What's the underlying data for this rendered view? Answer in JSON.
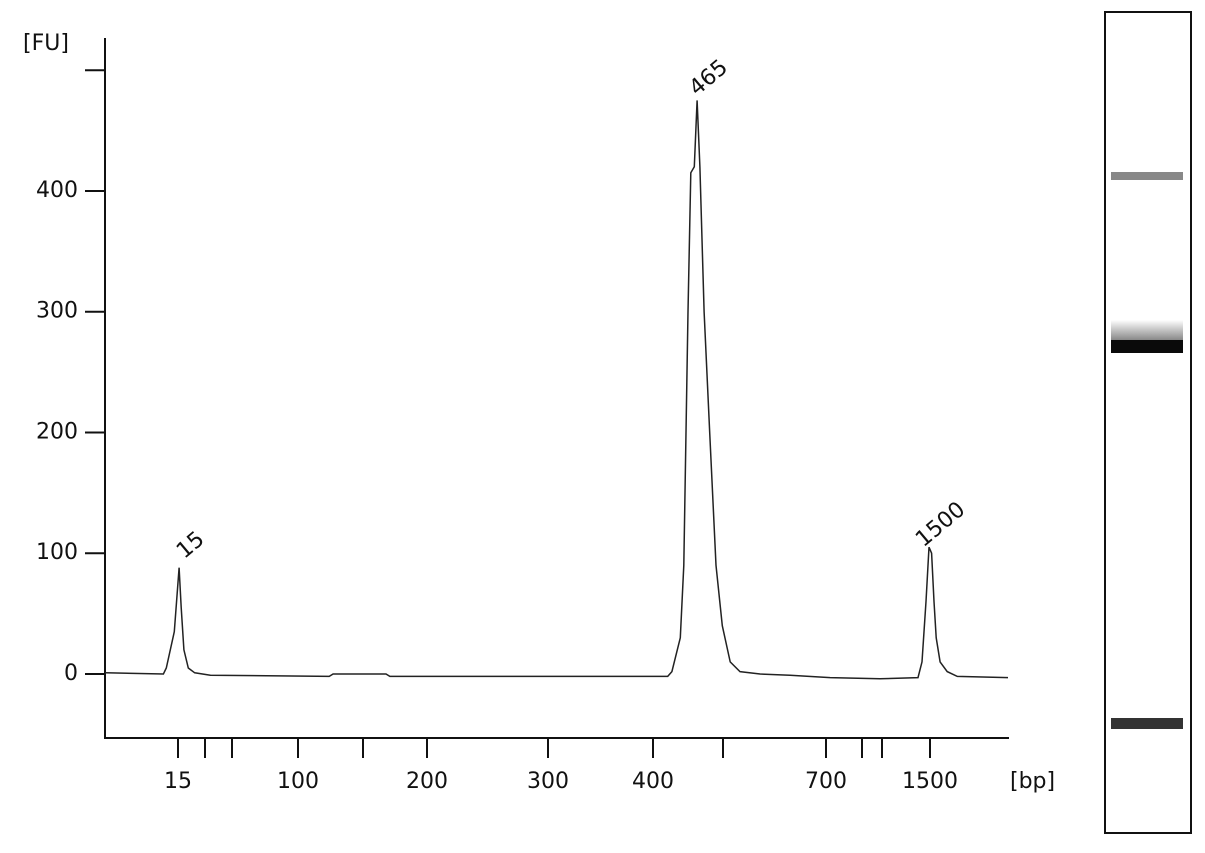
{
  "chart_data": {
    "type": "line",
    "y_label": "[FU]",
    "x_label": "[bp]",
    "ylim": [
      -53,
      525
    ],
    "yticks": [
      0,
      100,
      200,
      300,
      400,
      {
        "value": 500,
        "label": null
      }
    ],
    "xlim": [
      5,
      2500
    ],
    "xticks": [
      15,
      {
        "value": 20,
        "label": null
      },
      {
        "value": 25,
        "label": null
      },
      100,
      {
        "value": 150,
        "label": null
      },
      200,
      300,
      400,
      {
        "value": 500,
        "label": null
      },
      700,
      {
        "value": 850,
        "label": null
      },
      {
        "value": 1000,
        "label": null
      },
      1500
    ],
    "color": "#222222",
    "x": [
      5,
      13,
      13.4,
      14.5,
      15.2,
      15.6,
      16.1,
      16.9,
      18.1,
      21,
      124,
      127,
      168,
      171,
      421,
      427,
      439,
      444,
      450,
      454,
      459,
      463,
      467,
      473,
      481,
      490,
      499,
      514,
      533,
      572,
      630,
      717,
      985,
      1375,
      1417,
      1458,
      1490,
      1521,
      1551,
      1580,
      1630,
      1720,
      1850,
      2500
    ],
    "values": [
      1,
      0,
      5,
      35,
      88,
      55,
      20,
      5,
      1,
      -1,
      -2,
      0,
      0,
      -2,
      -2,
      2,
      30,
      90,
      300,
      415,
      420,
      475,
      420,
      300,
      200,
      90,
      40,
      10,
      2,
      0,
      -1,
      -3,
      -4,
      -3,
      10,
      60,
      105,
      100,
      60,
      30,
      10,
      2,
      -2,
      -3
    ],
    "annotations": [
      {
        "text": "15",
        "x": 15.2,
        "y": 88
      },
      {
        "text": "465",
        "x": 463,
        "y": 475
      },
      {
        "text": "1500",
        "x": 1490,
        "y": 105
      }
    ]
  }
}
